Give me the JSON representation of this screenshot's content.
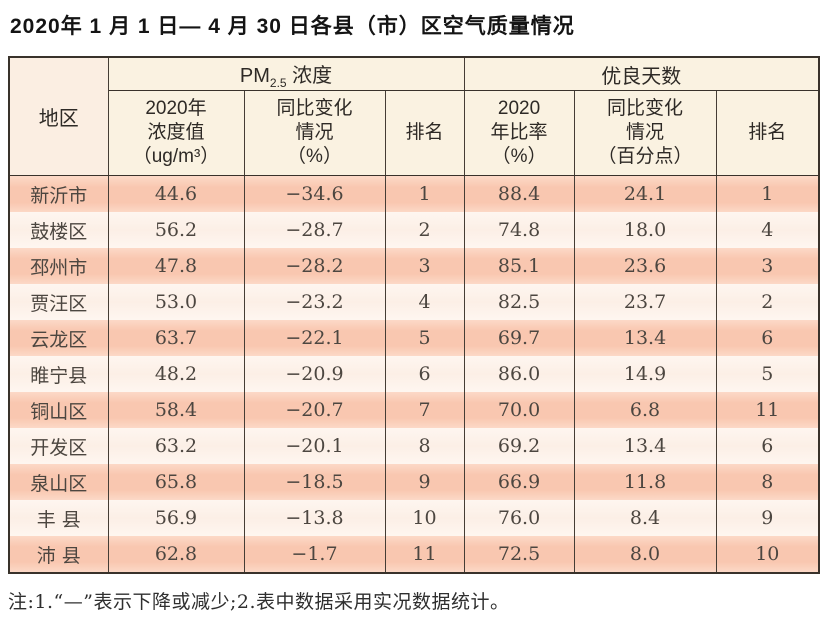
{
  "title": "2020年 1 月 1 日— 4 月 30 日各县（市）区空气质量情况",
  "table": {
    "header": {
      "region": "地区",
      "pm_group": {
        "prefix": "PM",
        "sub": "2.5",
        "suffix": " 浓度"
      },
      "good_days_group": "优良天数",
      "sub_headers": [
        "2020年\n浓度值\n（ug/m³）",
        "同比变化\n情况\n（%）",
        "排名",
        "2020\n年比率\n（%）",
        "同比变化\n情况\n（百分点）",
        "排名"
      ]
    },
    "rows": [
      {
        "region": "新沂市",
        "values": [
          "44.6",
          "−34.6",
          "1",
          "88.4",
          "24.1",
          "1"
        ]
      },
      {
        "region": "鼓楼区",
        "values": [
          "56.2",
          "−28.7",
          "2",
          "74.8",
          "18.0",
          "4"
        ]
      },
      {
        "region": "邳州市",
        "values": [
          "47.8",
          "−28.2",
          "3",
          "85.1",
          "23.6",
          "3"
        ]
      },
      {
        "region": "贾汪区",
        "values": [
          "53.0",
          "−23.2",
          "4",
          "82.5",
          "23.7",
          "2"
        ]
      },
      {
        "region": "云龙区",
        "values": [
          "63.7",
          "−22.1",
          "5",
          "69.7",
          "13.4",
          "6"
        ]
      },
      {
        "region": "睢宁县",
        "values": [
          "48.2",
          "−20.9",
          "6",
          "86.0",
          "14.9",
          "5"
        ]
      },
      {
        "region": "铜山区",
        "values": [
          "58.4",
          "−20.7",
          "7",
          "70.0",
          "6.8",
          "11"
        ]
      },
      {
        "region": "开发区",
        "values": [
          "63.2",
          "−20.1",
          "8",
          "69.2",
          "13.4",
          "6"
        ]
      },
      {
        "region": "泉山区",
        "values": [
          "65.8",
          "−18.5",
          "9",
          "66.9",
          "11.8",
          "8"
        ]
      },
      {
        "region": "丰 县",
        "values": [
          "56.9",
          "−13.8",
          "10",
          "76.0",
          "8.4",
          "9"
        ]
      },
      {
        "region": "沛 县",
        "values": [
          "62.8",
          "−1.7",
          "11",
          "72.5",
          "8.0",
          "10"
        ]
      }
    ]
  },
  "note": "注:1.“—”表示下降或减少;2.表中数据采用实况数据统计。",
  "colors": {
    "row_odd": "#f9c7b0",
    "row_even": "#fcefe6",
    "header_bg": "#faf2e1",
    "region_header_bg": "#fbeee2",
    "border": "#39322b",
    "data_text": "#4c4640"
  }
}
